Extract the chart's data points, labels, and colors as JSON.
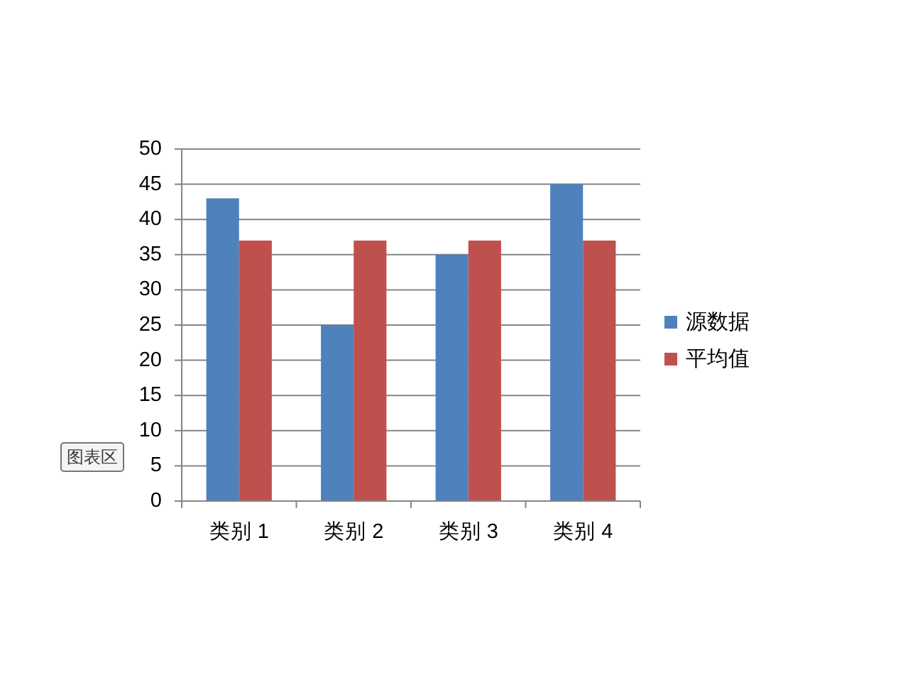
{
  "chart_data": {
    "type": "bar",
    "categories": [
      "类别 1",
      "类别 2",
      "类别 3",
      "类别 4"
    ],
    "series": [
      {
        "name": "源数据",
        "color": "#4f81bd",
        "values": [
          43,
          25,
          35,
          45
        ]
      },
      {
        "name": "平均值",
        "color": "#c0504d",
        "values": [
          37,
          37,
          37,
          37
        ]
      }
    ],
    "ylim": [
      0,
      50
    ],
    "yticks": [
      0,
      5,
      10,
      15,
      20,
      25,
      30,
      35,
      40,
      45,
      50
    ],
    "grid": "y",
    "legend": "right",
    "annotations": [
      "图表区"
    ]
  }
}
